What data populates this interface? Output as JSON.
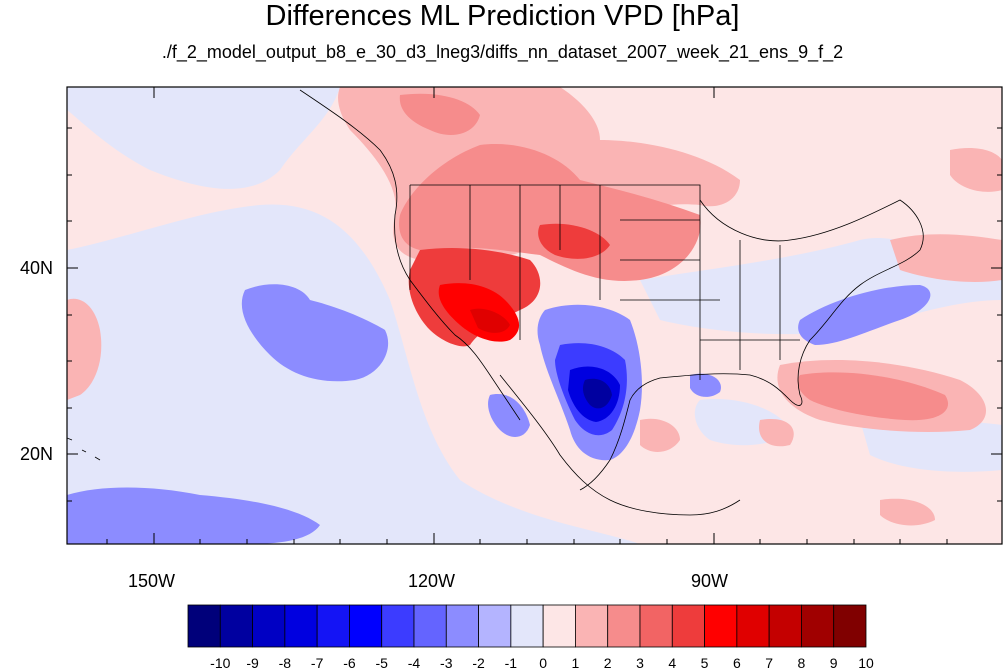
{
  "title": "Differences ML Prediction VPD [hPa]",
  "subtitle": "./f_2_model_output_b8_e_30_d3_lneg3/diffs_nn_dataset_2007_week_21_ens_9_f_2",
  "map": {
    "lat_labels": [
      "40N",
      "20N"
    ],
    "lon_labels": [
      "150W",
      "120W",
      "90W"
    ]
  },
  "colorbar": {
    "labels": [
      "-10",
      "-9",
      "-8",
      "-7",
      "-6",
      "-5",
      "-4",
      "-3",
      "-2",
      "-1",
      "0",
      "1",
      "2",
      "3",
      "4",
      "5",
      "6",
      "7",
      "8",
      "9",
      "10"
    ],
    "colors": [
      "#00007a",
      "#0000a0",
      "#0000c4",
      "#0000e0",
      "#1414f5",
      "#0000ff",
      "#3c3cff",
      "#6464ff",
      "#8c8cff",
      "#b4b4ff",
      "#e3e6fa",
      "#fde6e6",
      "#fab4b4",
      "#f68c8c",
      "#f26464",
      "#ee3c3c",
      "#ff0000",
      "#e00000",
      "#c40000",
      "#a00000",
      "#800000"
    ]
  }
}
